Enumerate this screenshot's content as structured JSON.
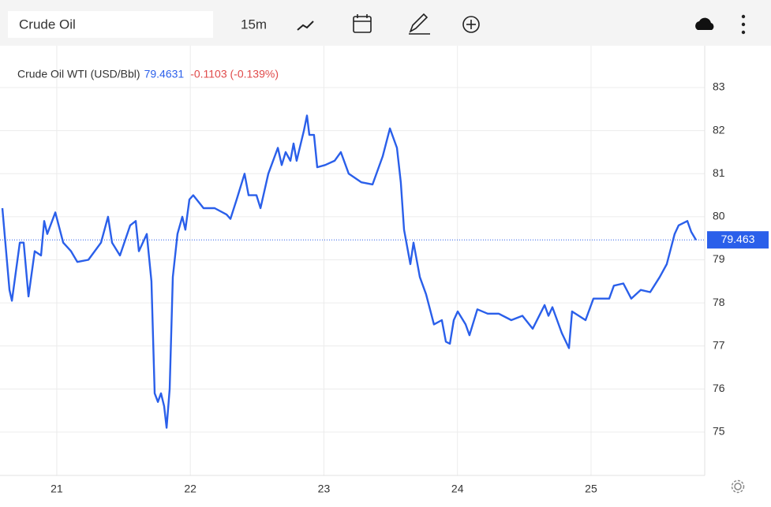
{
  "toolbar": {
    "search": "Crude Oil",
    "interval": "15m"
  },
  "chart_data": {
    "type": "line",
    "legend": {
      "name": "Crude Oil WTI (USD/Bbl)",
      "price": "79.4631",
      "change": "-0.1103 (-0.139%)"
    },
    "x": [
      20.593,
      20.646,
      20.664,
      20.723,
      20.752,
      20.788,
      20.835,
      20.882,
      20.906,
      20.929,
      20.989,
      21.048,
      21.107,
      21.154,
      21.237,
      21.331,
      21.384,
      21.414,
      21.473,
      21.55,
      21.591,
      21.615,
      21.674,
      21.709,
      21.733,
      21.757,
      21.78,
      21.804,
      21.822,
      21.845,
      21.869,
      21.904,
      21.94,
      21.963,
      21.993,
      22.022,
      22.099,
      22.182,
      22.271,
      22.3,
      22.347,
      22.406,
      22.436,
      22.495,
      22.525,
      22.584,
      22.655,
      22.684,
      22.714,
      22.749,
      22.773,
      22.796,
      22.85,
      22.873,
      22.891,
      22.926,
      22.95,
      23.009,
      23.08,
      23.127,
      23.186,
      23.281,
      23.364,
      23.44,
      23.494,
      23.547,
      23.576,
      23.6,
      23.647,
      23.671,
      23.718,
      23.765,
      23.824,
      23.883,
      23.913,
      23.943,
      23.972,
      24.002,
      24.061,
      24.09,
      24.149,
      24.226,
      24.309,
      24.403,
      24.486,
      24.563,
      24.652,
      24.681,
      24.711,
      24.781,
      24.835,
      24.858,
      24.959,
      25.018,
      25.136,
      25.171,
      25.242,
      25.301,
      25.372,
      25.443,
      25.514,
      25.567,
      25.626,
      25.656,
      25.721,
      25.75,
      25.786
    ],
    "series": [
      {
        "name": "Crude Oil WTI (USD/Bbl)",
        "color": "#2a5fea",
        "values": [
          80.2,
          78.3,
          78.05,
          79.4,
          79.4,
          78.15,
          79.2,
          79.1,
          79.9,
          79.6,
          80.1,
          79.4,
          79.2,
          78.95,
          79.0,
          79.4,
          80.0,
          79.4,
          79.1,
          79.8,
          79.9,
          79.2,
          79.6,
          78.5,
          75.9,
          75.7,
          75.9,
          75.6,
          75.1,
          76.0,
          78.6,
          79.6,
          80.0,
          79.7,
          80.4,
          80.5,
          80.2,
          80.2,
          80.05,
          79.95,
          80.4,
          81.0,
          80.5,
          80.5,
          80.2,
          81.0,
          81.6,
          81.2,
          81.5,
          81.3,
          81.7,
          81.3,
          82.0,
          82.35,
          81.9,
          81.9,
          81.15,
          81.2,
          81.3,
          81.5,
          81.0,
          80.8,
          80.75,
          81.4,
          82.05,
          81.6,
          80.8,
          79.7,
          78.9,
          79.4,
          78.6,
          78.2,
          77.5,
          77.6,
          77.1,
          77.05,
          77.6,
          77.8,
          77.5,
          77.25,
          77.85,
          77.75,
          77.75,
          77.6,
          77.7,
          77.4,
          77.95,
          77.7,
          77.9,
          77.3,
          76.95,
          77.8,
          77.6,
          78.1,
          78.1,
          78.4,
          78.45,
          78.1,
          78.3,
          78.25,
          78.6,
          78.9,
          79.6,
          79.8,
          79.9,
          79.65,
          79.46
        ]
      }
    ],
    "last_value": 79.463,
    "xlim": [
      20.575,
      25.851
    ],
    "xticks": [
      21,
      22,
      23,
      24,
      25
    ],
    "ylim": [
      74,
      84
    ],
    "yticks": [
      75,
      76,
      77,
      78,
      79,
      80,
      81,
      82,
      83
    ],
    "grid": true
  }
}
